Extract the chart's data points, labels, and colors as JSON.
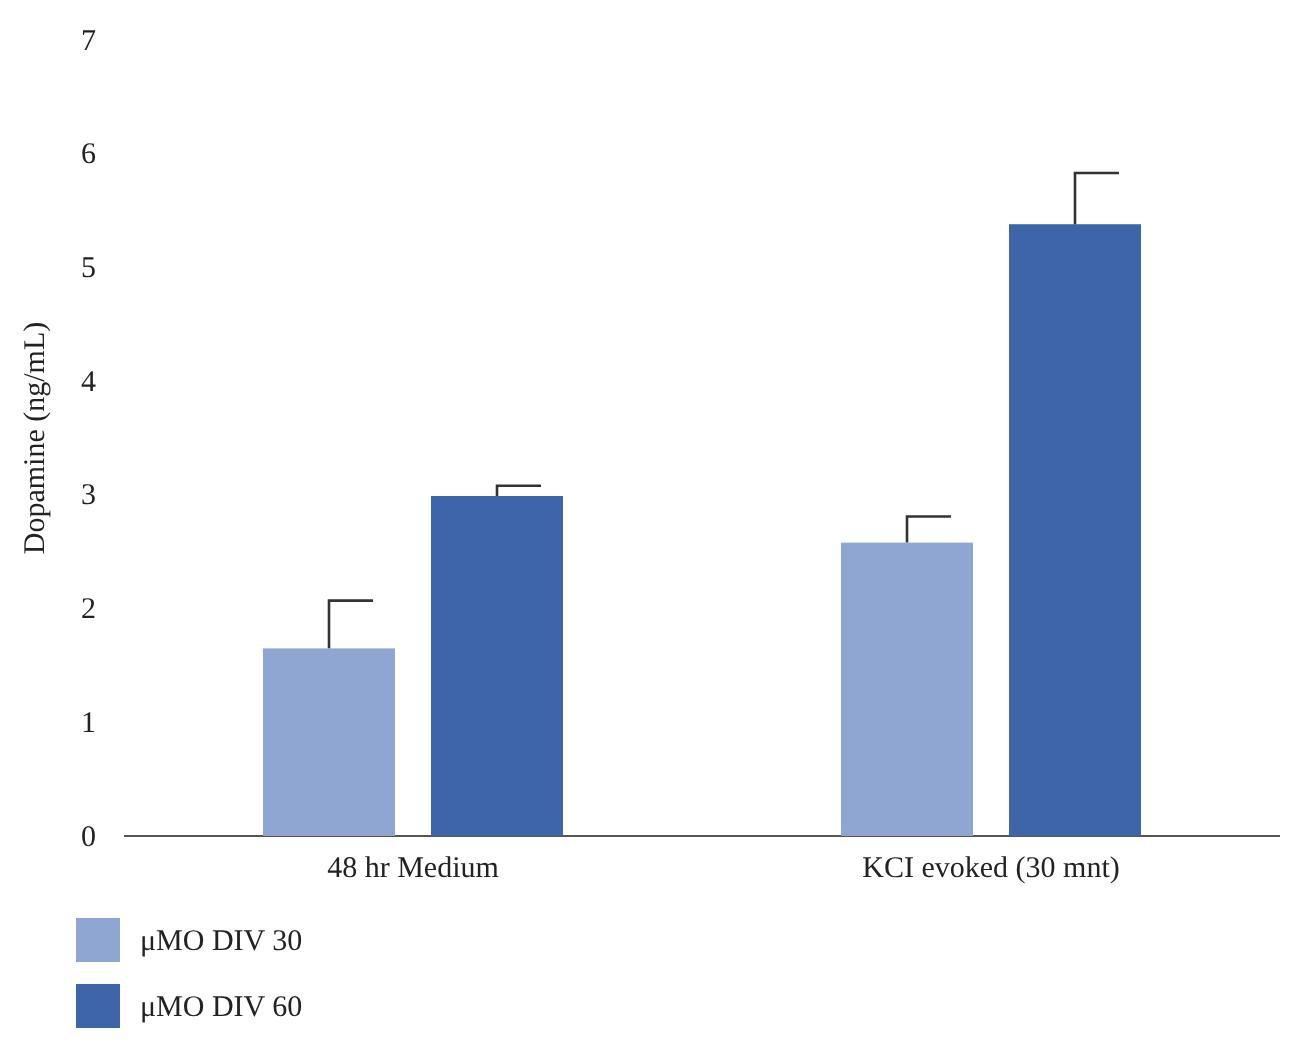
{
  "chart_data": {
    "type": "bar",
    "ylabel": "Dopamine (ng/mL)",
    "categories": [
      "48 hr Medium",
      "KCI evoked (30 mnt)"
    ],
    "series": [
      {
        "name": "μMO DIV 30",
        "color": "#8fa6d2",
        "values": [
          1.65,
          2.58
        ],
        "errors": [
          [
            1.65,
            2.07
          ],
          [
            2.58,
            2.81
          ]
        ]
      },
      {
        "name": "μMO DIV 60",
        "color": "#3d65a8",
        "values": [
          2.99,
          5.38
        ],
        "errors": [
          [
            2.99,
            3.08
          ],
          [
            5.38,
            5.83
          ]
        ]
      }
    ],
    "ylim": [
      0,
      7
    ],
    "yticks": [
      0,
      1,
      2,
      3,
      4,
      5,
      6,
      7
    ],
    "grid": false,
    "legend": "bottom left"
  }
}
